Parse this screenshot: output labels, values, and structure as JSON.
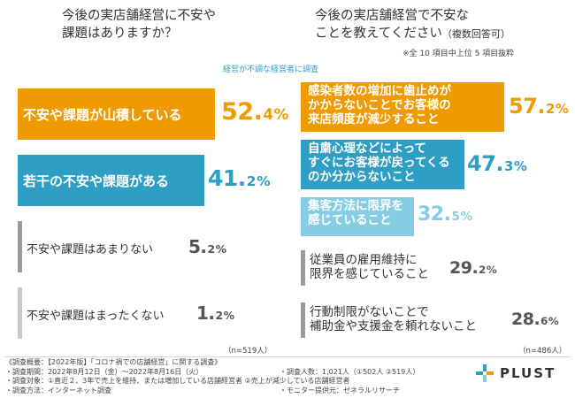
{
  "left_question": {
    "line1": "今後の実店舗経営に不安や",
    "line2": "課題はありますか？",
    "subtitle": "経営が不調な経営者に調査",
    "n_note": "（n=519人）",
    "items": [
      {
        "label": "不安や課題が山積している",
        "num": "52.",
        "dec": "4",
        "value": 52.4
      },
      {
        "label": "若干の不安や課題がある",
        "num": "41.",
        "dec": "2",
        "value": 41.2
      },
      {
        "label": "不安や課題はあまりない",
        "num": "5.",
        "dec": "2",
        "value": 5.2
      },
      {
        "label": "不安や課題はまったくない",
        "num": "1.",
        "dec": "2",
        "value": 1.2
      }
    ]
  },
  "right_question": {
    "line1": "今後の実店舗経営で不安な",
    "line2": "ことを教えてください",
    "line2_suffix": "（複数回答可）",
    "note": "※全 10 項目中上位 5 項目抜粋",
    "n_note": "（n=486人）",
    "items": [
      {
        "line1": "感染者数の増加に歯止めが",
        "line2": "かからないことでお客様の",
        "line3": "来店頻度が減少すること",
        "num": "57.",
        "dec": "2",
        "value": 57.2
      },
      {
        "line1": "自粛心理などによって",
        "line2": "すぐにお客様が戻ってくる",
        "line3": "のか分からないこと",
        "num": "47.",
        "dec": "3",
        "value": 47.3
      },
      {
        "line1": "集客方法に限界を",
        "line2": "感じていること",
        "line3": "",
        "num": "32.",
        "dec": "5",
        "value": 32.5
      },
      {
        "line1": "従業員の雇用維持に",
        "line2": "限界を感じていること",
        "line3": "",
        "num": "29.",
        "dec": "2",
        "value": 29.2
      },
      {
        "line1": "行動制限がないことで",
        "line2": "補助金や支援金を頼れないこと",
        "line3": "",
        "num": "28.",
        "dec": "6",
        "value": 28.6
      }
    ]
  },
  "footer": {
    "line0": "《調査概要：【2022年版】「コロナ禍での店舗経営」に関する調査》",
    "line1a": "・調査期間：2022年8月12日（金）〜2022年8月16日（火）",
    "line1b": "・調査人数：1,021人（①502人 ②519人）",
    "line2": "・調査対象：①直近２、3年で売上を維持、または増加している店舗経営者 ②売上が減少している店舗経営者",
    "line3a": "・調査方法：インターネット調査",
    "line3b": "・モニター提供元：ゼネラルリサーチ"
  },
  "brand": {
    "name": "PLUST"
  },
  "colors": {
    "orange": "#ee9a00",
    "blue": "#2e9ec5",
    "lightblue": "#86cde3",
    "gray_bar": "#9a9a9a",
    "value_dark": "#555555",
    "logo_teal": "#1fa8b8"
  }
}
